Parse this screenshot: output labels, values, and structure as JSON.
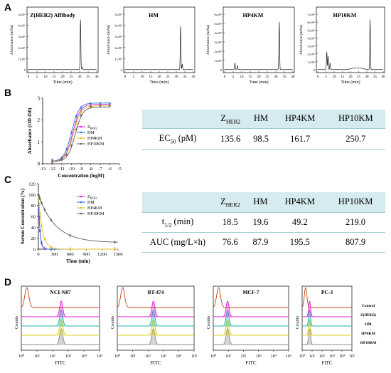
{
  "panels": {
    "A": "A",
    "B": "B",
    "C": "C",
    "D": "D"
  },
  "panel_a": {
    "charts": [
      {
        "title": "Z(HER2) Affibody",
        "ylabel": "Absorbance (mAu)",
        "xlabel": "Time (min)",
        "xticks": [
          "0",
          "5",
          "10",
          "15",
          "20",
          "25",
          "30",
          "35",
          "40"
        ],
        "yticks": [
          "0",
          "1x10⁵",
          "2x10⁵",
          "3x10⁵",
          "4x10⁵",
          "5x10⁵"
        ],
        "peaks": [
          {
            "x": 30.5,
            "h": 0.9
          },
          {
            "x": 31.5,
            "h": 0.04
          }
        ]
      },
      {
        "title": "HM",
        "ylabel": "Absorbance (mAu)",
        "xlabel": "Time (min)",
        "xticks": [
          "0",
          "5",
          "10",
          "15",
          "20",
          "25",
          "30",
          "35",
          "40"
        ],
        "yticks": [
          "0",
          "1x10⁵",
          "2x10⁵",
          "3x10⁵",
          "4x10⁵",
          "5x10⁵"
        ],
        "peaks": [
          {
            "x": 32.5,
            "h": 0.78
          },
          {
            "x": 33.5,
            "h": 0.1
          }
        ]
      },
      {
        "title": "HP4KM",
        "ylabel": "Absorbance (mAu)",
        "xlabel": "Time (min)",
        "xticks": [
          "0",
          "5",
          "10",
          "15",
          "20",
          "25",
          "30",
          "35",
          "40"
        ],
        "yticks": [
          "0",
          "1x10⁵",
          "2x10⁵",
          "3x10⁵",
          "4x10⁵",
          "5x10⁵",
          "6x10⁵"
        ],
        "peaks": [
          {
            "x": 6.0,
            "h": 0.12
          },
          {
            "x": 7.5,
            "h": 0.07
          },
          {
            "x": 32.0,
            "h": 0.86
          }
        ]
      },
      {
        "title": "HP10KM",
        "ylabel": "Absorbance (mAu)",
        "xlabel": "Time (min)",
        "xticks": [
          "0",
          "5",
          "10",
          "15",
          "20",
          "25",
          "30",
          "35",
          "40"
        ],
        "yticks": [
          "0",
          "1x10⁵",
          "2x10⁵",
          "3x10⁵",
          "4x10⁵",
          "5x10⁵",
          "6x10⁵",
          "7x10⁵"
        ],
        "peaks": [
          {
            "x": 5.5,
            "h": 0.32
          },
          {
            "x": 6.3,
            "h": 0.24
          },
          {
            "x": 7.5,
            "h": 0.12
          },
          {
            "x": 32.0,
            "h": 0.9
          }
        ]
      }
    ]
  },
  "panel_b": {
    "chart": {
      "type": "line",
      "ylabel": "Absorbance (OD 450)",
      "xlabel": "Concentration (logM)",
      "xticks": [
        "-13",
        "-12",
        "-11",
        "-10",
        "-9",
        "-8",
        "-7",
        "-6",
        "-5"
      ],
      "yticks": [
        "0",
        "1",
        "2",
        "3"
      ],
      "xlim": [
        -13,
        -5
      ],
      "ylim": [
        0,
        3
      ],
      "legend": [
        "Z",
        "HM",
        "HP4KM",
        "HP10KM"
      ],
      "legend_sub": "HER2",
      "series": [
        {
          "name": "Z",
          "color": "#e020e0",
          "ec50": -9.87,
          "top": 2.72,
          "bottom": 0.1
        },
        {
          "name": "HM",
          "color": "#2f6fe0",
          "ec50": -10.0,
          "top": 2.78,
          "bottom": 0.1
        },
        {
          "name": "HP4KM",
          "color": "#e0c020",
          "ec50": -9.79,
          "top": 2.65,
          "bottom": 0.1
        },
        {
          "name": "HP10KM",
          "color": "#606060",
          "ec50": -9.6,
          "top": 2.6,
          "bottom": 0.1
        }
      ],
      "x_points": [
        -12,
        -11,
        -10.5,
        -10,
        -9.5,
        -9,
        -8,
        -7,
        -6
      ]
    },
    "table": {
      "header_main": [
        "Z",
        "HM",
        "HP4KM",
        "HP10KM"
      ],
      "header_sub": "HER2",
      "row_label_main": "EC",
      "row_label_sub": "50",
      "row_label_rest": " (pM)",
      "values": [
        "135.6",
        "98.5",
        "161.7",
        "250.7"
      ]
    }
  },
  "panel_c": {
    "chart": {
      "type": "line",
      "ylabel": "Serum Concentration (%)",
      "xlabel": "Time (min)",
      "xticks": [
        "0",
        "300",
        "600",
        "900",
        "1200",
        "1500"
      ],
      "yticks": [
        "0",
        "20",
        "40",
        "60",
        "80",
        "100",
        "120"
      ],
      "xlim": [
        0,
        1500
      ],
      "ylim": [
        0,
        120
      ],
      "legend": [
        "Z",
        "HM",
        "HP4KM",
        "HP10KM"
      ],
      "legend_sub": "HER2",
      "series": [
        {
          "name": "Z",
          "color": "#e020e0",
          "t_half": 18.5
        },
        {
          "name": "HM",
          "color": "#2f6fe0",
          "t_half": 19.6
        },
        {
          "name": "HP4KM",
          "color": "#e0c020",
          "t_half": 49.2
        },
        {
          "name": "HP10KM",
          "color": "#606060",
          "t_half": 219.0,
          "plateau": 12
        }
      ]
    },
    "table": {
      "header_main": [
        "Z",
        "HM",
        "HP4KM",
        "HP10KM"
      ],
      "header_sub": "HER2",
      "rows": [
        {
          "label_main": "t",
          "label_sub": "1/2",
          "label_rest": " (min)",
          "values": [
            "18.5",
            "19.6",
            "49.2",
            "219.0"
          ]
        },
        {
          "label_main": "AUC (mg/L×h)",
          "label_sub": "",
          "label_rest": "",
          "values": [
            "76.6",
            "87.9",
            "195.5",
            "807.9"
          ]
        }
      ]
    }
  },
  "panel_d": {
    "ylabel": "Counts",
    "xlabel": "FITC",
    "xticks": [
      "10⁰",
      "10¹",
      "10²",
      "10³",
      "10⁴",
      "10⁵"
    ],
    "charts": [
      {
        "title": "NCI-N87",
        "peak": 2.55
      },
      {
        "title": "BT-474",
        "peak": 2.35
      },
      {
        "title": "MCF-7",
        "peak": 0.95
      },
      {
        "title": "PC-3",
        "peak": 0.75
      }
    ],
    "legend": [
      "Control",
      "Z(HER2)",
      "HM",
      "HP4KM",
      "HP10KM"
    ],
    "colors": [
      "#c0441c",
      "#e020e0",
      "#20b4b4",
      "#e0d020",
      "#888888"
    ]
  }
}
